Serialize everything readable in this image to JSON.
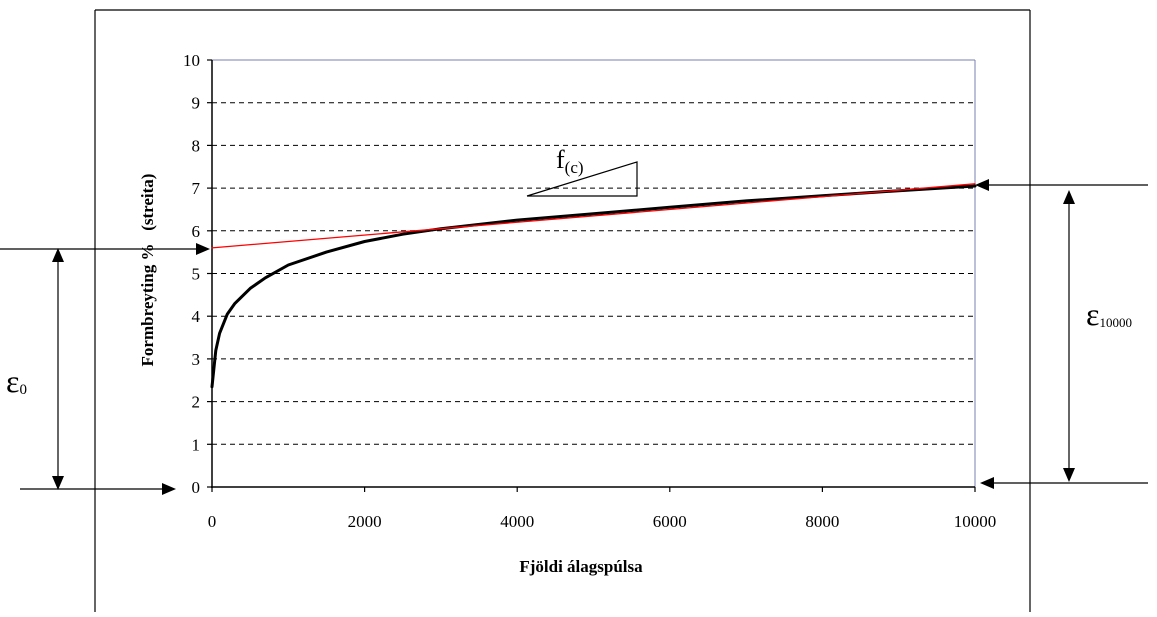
{
  "chart_data": {
    "type": "line",
    "title": "",
    "xlabel": "Fjöldi álagspúlsa",
    "ylabel": "Formbreyting %   (streita)",
    "xlim": [
      0,
      10000
    ],
    "ylim": [
      0,
      10
    ],
    "xticks": [
      0,
      2000,
      4000,
      6000,
      8000,
      10000
    ],
    "yticks": [
      0,
      1,
      2,
      3,
      4,
      5,
      6,
      7,
      8,
      9,
      10
    ],
    "grid": "horizontal dashed",
    "series": [
      {
        "role": "measured",
        "color": "#000000",
        "x": [
          0,
          50,
          100,
          200,
          300,
          500,
          700,
          1000,
          1500,
          2000,
          2500,
          3000,
          4000,
          5000,
          6000,
          7000,
          8000,
          9000,
          10000
        ],
        "y": [
          2.35,
          3.2,
          3.6,
          4.05,
          4.3,
          4.65,
          4.9,
          5.2,
          5.5,
          5.75,
          5.92,
          6.05,
          6.25,
          6.4,
          6.55,
          6.7,
          6.82,
          6.94,
          7.05
        ]
      },
      {
        "role": "linear fit",
        "color": "#ff0000",
        "x": [
          0,
          10000
        ],
        "y": [
          5.6,
          7.1
        ]
      }
    ],
    "annotations": {
      "slope_label_main": "f",
      "slope_label_sub": "(c)",
      "eps0_main": "ε",
      "eps0_sub": "0",
      "eps10000_main": "ε",
      "eps10000_sub": "10000"
    }
  },
  "colors": {
    "plot_border": "#7a7fb0",
    "grid": "#000000",
    "fit_line": "#ff0000",
    "curve": "#000000"
  }
}
